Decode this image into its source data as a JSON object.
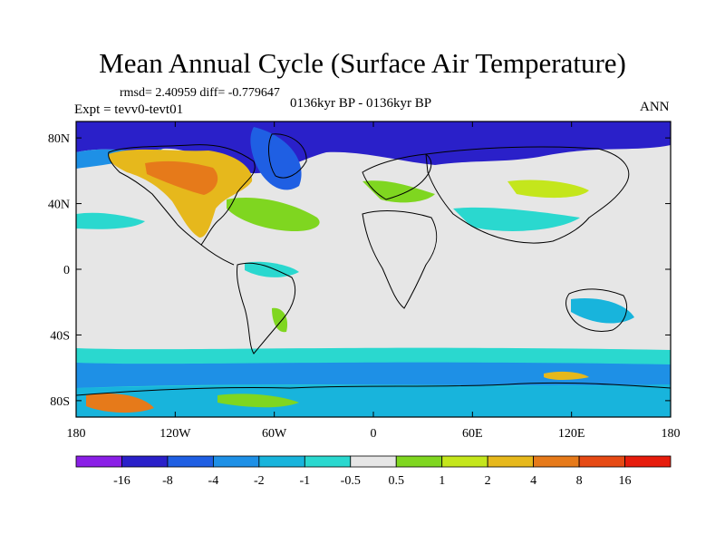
{
  "title": "Mean Annual Cycle (Surface Air Temperature)",
  "stats_text": "rmsd= 2.40959 diff= -0.779647",
  "experiment_text": "Expt = tevv0-tevt01",
  "period_text": "0136kyr BP - 0136kyr BP",
  "season_text": "ANN",
  "lat_labels": [
    "80N",
    "40N",
    "0",
    "40S",
    "80S"
  ],
  "lat_values": [
    80,
    40,
    0,
    -40,
    -80
  ],
  "lon_labels": [
    "180",
    "120W",
    "60W",
    "0",
    "60E",
    "120E",
    "180"
  ],
  "lon_values": [
    -180,
    -120,
    -60,
    0,
    60,
    120,
    180
  ],
  "colorbar": {
    "labels": [
      "-16",
      "-8",
      "-4",
      "-2",
      "-1",
      "-0.5",
      "0.5",
      "1",
      "2",
      "4",
      "8",
      "16"
    ],
    "colors": [
      "#8a1fe6",
      "#2a20c9",
      "#1f5fe3",
      "#1e90e6",
      "#18b4dc",
      "#2ad8cf",
      "#e6e6e6",
      "#7fd620",
      "#c4e61c",
      "#e6b81c",
      "#e67a1a",
      "#e64a14",
      "#e61c0c"
    ]
  }
}
